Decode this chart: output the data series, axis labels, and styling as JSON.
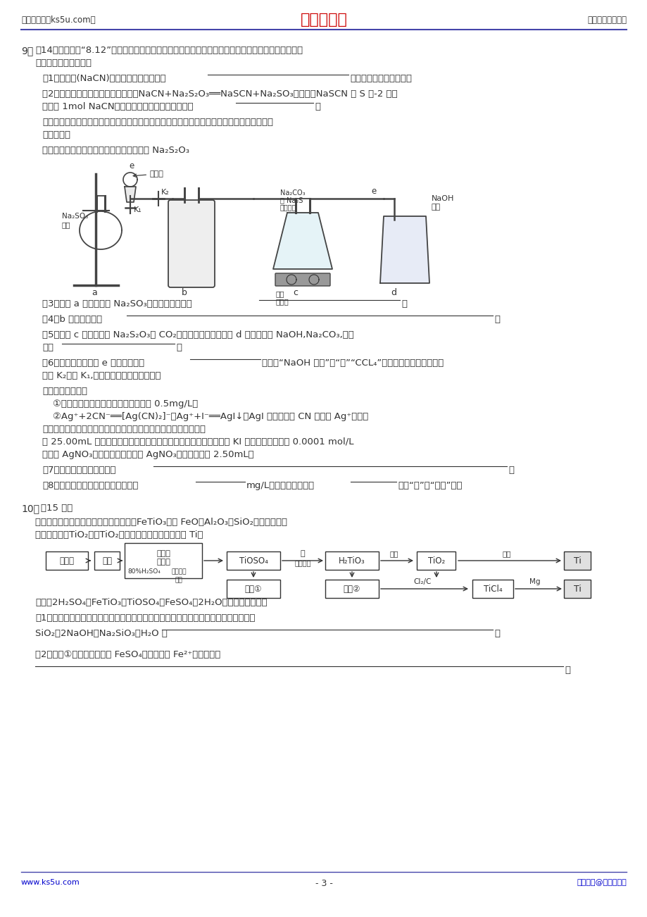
{
  "page_bg": "#ffffff",
  "header_left": "高考资源网（ks5u.com）",
  "header_center": "高考资源网",
  "header_right": "您身边的高考专家",
  "header_center_color": "#cc0000",
  "header_line_color": "#4444aa",
  "footer_left": "www.ks5u.com",
  "footer_center": "- 3 -",
  "footer_right": "版权所有@高考资源网",
  "footer_color": "#0000cc",
  "text_color": "#333333"
}
